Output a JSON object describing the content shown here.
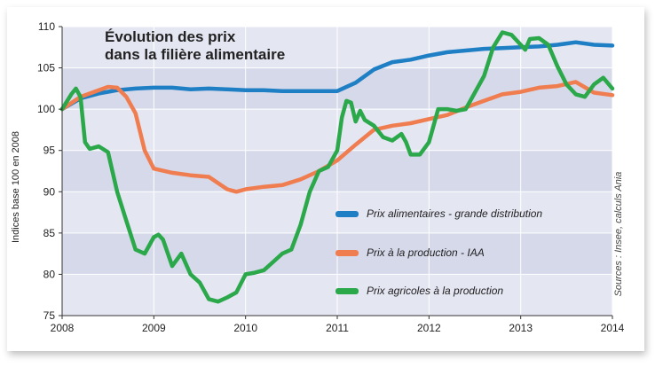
{
  "chart_data": {
    "type": "line",
    "title_line1": "Évolution des prix",
    "title_line2": "dans la filière alimentaire",
    "ylabel": "Indices base 100 en 2008",
    "source": "Sources : Insee, calculs Ania",
    "ylim": [
      75,
      110
    ],
    "xlim": [
      2008,
      2014
    ],
    "yticks": [
      "75",
      "80",
      "85",
      "90",
      "95",
      "100",
      "105",
      "110"
    ],
    "xticks": [
      "2008",
      "2009",
      "2010",
      "2011",
      "2012",
      "2013",
      "2014"
    ],
    "grid": true,
    "series": [
      {
        "name": "Prix alimentaires - grande distribution",
        "color": "#1f7fc4",
        "x": [
          2008.0,
          2008.2,
          2008.4,
          2008.6,
          2008.8,
          2009.0,
          2009.2,
          2009.4,
          2009.6,
          2009.8,
          2010.0,
          2010.2,
          2010.4,
          2010.6,
          2010.8,
          2011.0,
          2011.2,
          2011.4,
          2011.6,
          2011.8,
          2012.0,
          2012.2,
          2012.4,
          2012.6,
          2012.8,
          2013.0,
          2013.2,
          2013.4,
          2013.6,
          2013.8,
          2014.0
        ],
        "values": [
          100.0,
          101.3,
          101.9,
          102.3,
          102.5,
          102.6,
          102.6,
          102.4,
          102.5,
          102.4,
          102.3,
          102.3,
          102.2,
          102.2,
          102.2,
          102.2,
          103.2,
          104.8,
          105.7,
          106.0,
          106.5,
          106.9,
          107.1,
          107.3,
          107.4,
          107.5,
          107.6,
          107.8,
          108.1,
          107.8,
          107.7
        ]
      },
      {
        "name": "Prix à la production - IAA",
        "color": "#f07d4f",
        "x": [
          2008.0,
          2008.2,
          2008.4,
          2008.5,
          2008.6,
          2008.7,
          2008.8,
          2008.9,
          2009.0,
          2009.2,
          2009.4,
          2009.6,
          2009.8,
          2009.9,
          2010.0,
          2010.2,
          2010.4,
          2010.6,
          2010.8,
          2011.0,
          2011.2,
          2011.4,
          2011.6,
          2011.8,
          2012.0,
          2012.2,
          2012.4,
          2012.6,
          2012.8,
          2013.0,
          2013.2,
          2013.4,
          2013.6,
          2013.8,
          2014.0
        ],
        "values": [
          100.0,
          101.5,
          102.3,
          102.7,
          102.6,
          101.5,
          99.5,
          95.0,
          92.8,
          92.3,
          92.0,
          91.8,
          90.3,
          90.0,
          90.3,
          90.6,
          90.8,
          91.5,
          92.5,
          93.8,
          95.7,
          97.5,
          98.0,
          98.3,
          98.8,
          99.3,
          100.2,
          101.0,
          101.8,
          102.1,
          102.6,
          102.8,
          103.3,
          102.0,
          101.7
        ]
      },
      {
        "name": "Prix agricoles à la production",
        "color": "#2aa84a",
        "x": [
          2008.0,
          2008.1,
          2008.15,
          2008.2,
          2008.25,
          2008.3,
          2008.4,
          2008.5,
          2008.6,
          2008.7,
          2008.8,
          2008.9,
          2009.0,
          2009.05,
          2009.1,
          2009.2,
          2009.3,
          2009.4,
          2009.5,
          2009.6,
          2009.7,
          2009.8,
          2009.9,
          2010.0,
          2010.1,
          2010.2,
          2010.3,
          2010.4,
          2010.5,
          2010.6,
          2010.7,
          2010.8,
          2010.9,
          2011.0,
          2011.05,
          2011.1,
          2011.15,
          2011.2,
          2011.25,
          2011.3,
          2011.4,
          2011.5,
          2011.6,
          2011.7,
          2011.75,
          2011.8,
          2011.9,
          2012.0,
          2012.1,
          2012.2,
          2012.3,
          2012.4,
          2012.5,
          2012.6,
          2012.7,
          2012.8,
          2012.9,
          2013.0,
          2013.05,
          2013.1,
          2013.2,
          2013.3,
          2013.4,
          2013.5,
          2013.6,
          2013.7,
          2013.8,
          2013.9,
          2014.0
        ],
        "values": [
          100.0,
          101.8,
          102.5,
          101.5,
          96.0,
          95.2,
          95.5,
          94.8,
          90.0,
          86.5,
          83.0,
          82.5,
          84.5,
          84.8,
          84.2,
          81.0,
          82.5,
          80.0,
          79.0,
          77.0,
          76.7,
          77.2,
          77.8,
          80.0,
          80.2,
          80.5,
          81.5,
          82.5,
          83.0,
          86.0,
          90.0,
          92.5,
          93.0,
          95.0,
          99.0,
          101.0,
          100.8,
          98.5,
          99.8,
          98.7,
          98.0,
          96.6,
          96.2,
          97.0,
          96.0,
          94.5,
          94.5,
          96.0,
          100.0,
          100.0,
          99.8,
          100.0,
          102.0,
          104.0,
          107.5,
          109.3,
          109.0,
          107.8,
          107.2,
          108.5,
          108.6,
          107.8,
          105.2,
          103.0,
          101.8,
          101.5,
          103.0,
          103.8,
          102.5
        ]
      }
    ],
    "legend_position": "inside-right"
  },
  "colors": {
    "band_light": "#e4e6f2",
    "band_dark": "#d6d9ea",
    "gridline": "#ffffff",
    "axis": "#333333"
  }
}
